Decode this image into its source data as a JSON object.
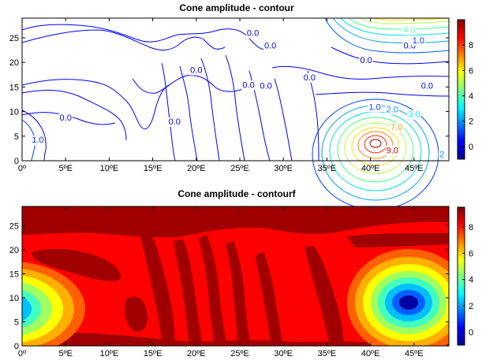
{
  "chart_data": [
    {
      "type": "contour",
      "title": "Cone amplitude - contour",
      "xlabel": "",
      "ylabel": "",
      "xlim": [
        0,
        49
      ],
      "ylim": [
        0,
        29
      ],
      "x_ticks": [
        "0º",
        "5ºE",
        "10ºE",
        "15ºE",
        "20ºE",
        "25ºE",
        "30ºE",
        "35ºE",
        "40ºE",
        "45ºE"
      ],
      "x_tick_values": [
        0,
        5,
        10,
        15,
        20,
        25,
        30,
        35,
        40,
        45
      ],
      "y_ticks": [
        "0",
        "5",
        "10",
        "15",
        "20",
        "25"
      ],
      "y_tick_values": [
        0,
        5,
        10,
        15,
        20,
        25
      ],
      "colorbar": {
        "ticks": [
          "0",
          "2",
          "4",
          "6",
          "8"
        ],
        "tick_values": [
          0,
          2,
          4,
          6,
          8
        ],
        "range": [
          -1,
          10
        ]
      },
      "contour_labels": [
        {
          "text": "0.0",
          "x": 26.5,
          "y": 26.0,
          "value": 0
        },
        {
          "text": "0.0",
          "x": 28.5,
          "y": 23.5,
          "value": 0
        },
        {
          "text": "0.0",
          "x": 20.0,
          "y": 18.5,
          "value": 0
        },
        {
          "text": "0.0",
          "x": 39.5,
          "y": 20.5,
          "value": 0
        },
        {
          "text": "0.0",
          "x": 33.0,
          "y": 17.0,
          "value": 0
        },
        {
          "text": "0.0",
          "x": 44.5,
          "y": 23.5,
          "value": 0
        },
        {
          "text": "0.0",
          "x": 26.0,
          "y": 15.5,
          "value": 0
        },
        {
          "text": "0.0",
          "x": 28.0,
          "y": 15.3,
          "value": 0
        },
        {
          "text": "0.0",
          "x": 46.5,
          "y": 15.3,
          "value": 0
        },
        {
          "text": "0.0",
          "x": 5.0,
          "y": 8.8,
          "value": 0
        },
        {
          "text": "0.0",
          "x": 17.5,
          "y": 8.0,
          "value": 0
        },
        {
          "text": "1.0",
          "x": 45.5,
          "y": 24.5,
          "value": 1
        },
        {
          "text": "4.0",
          "x": 44.5,
          "y": 26.7,
          "value": 4
        },
        {
          "text": "1.0",
          "x": 40.5,
          "y": 11.0,
          "value": 1
        },
        {
          "text": "2.0",
          "x": 42.5,
          "y": 10.5,
          "value": 2
        },
        {
          "text": "3.0",
          "x": 45.0,
          "y": 9.5,
          "value": 3
        },
        {
          "text": "7.0",
          "x": 43.0,
          "y": 6.9,
          "value": 7
        },
        {
          "text": "9.0",
          "x": 42.5,
          "y": 2.2,
          "value": 9
        },
        {
          "text": "2",
          "x": 48.2,
          "y": 1.4,
          "value": 2
        },
        {
          "text": "1.0",
          "x": 1.8,
          "y": 4.3,
          "value": 1
        }
      ]
    },
    {
      "type": "heatmap",
      "title": "Cone amplitude - contourf",
      "xlabel": "",
      "ylabel": "",
      "xlim": [
        0,
        49
      ],
      "ylim": [
        0,
        29
      ],
      "x_ticks": [
        "0º",
        "5ºE",
        "10ºE",
        "15ºE",
        "20ºE",
        "25ºE",
        "30ºE",
        "35ºE",
        "40ºE",
        "45ºE"
      ],
      "x_tick_values": [
        0,
        5,
        10,
        15,
        20,
        25,
        30,
        35,
        40,
        45
      ],
      "y_ticks": [
        "0",
        "5",
        "10",
        "15",
        "20",
        "25"
      ],
      "y_tick_values": [
        0,
        5,
        10,
        15,
        20,
        25
      ],
      "colorbar": {
        "ticks": [
          "0",
          "2",
          "4",
          "6",
          "8"
        ],
        "tick_values": [
          0,
          2,
          4,
          6,
          8
        ],
        "range": [
          -1,
          9.5
        ]
      }
    }
  ]
}
